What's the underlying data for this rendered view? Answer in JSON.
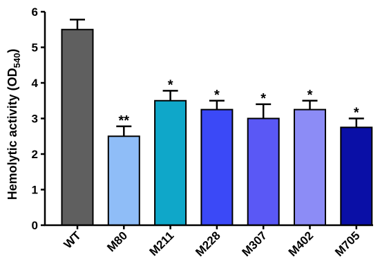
{
  "chart_data": {
    "type": "bar",
    "title": "",
    "xlabel": "",
    "ylabel": "Hemolytic activity (OD",
    "ylabel_subscript": "540",
    "ylabel_suffix": ")",
    "ylim": [
      0,
      6
    ],
    "yticks": [
      "0",
      "1",
      "2",
      "3",
      "4",
      "5",
      "6"
    ],
    "grid": false,
    "categories": [
      "WT",
      "M80",
      "M211",
      "M228",
      "M307",
      "M402",
      "M705"
    ],
    "values": [
      5.5,
      2.5,
      3.5,
      3.25,
      3.0,
      3.25,
      2.75
    ],
    "errors": [
      0.28,
      0.28,
      0.28,
      0.25,
      0.4,
      0.25,
      0.25
    ],
    "significance": [
      "",
      "**",
      "*",
      "*",
      "*",
      "*",
      "*"
    ],
    "colors": [
      "#5f5f5f",
      "#8fbdf7",
      "#0fa7c9",
      "#3b49f7",
      "#5a58f5",
      "#8c8cf6",
      "#0a0fa6"
    ]
  }
}
